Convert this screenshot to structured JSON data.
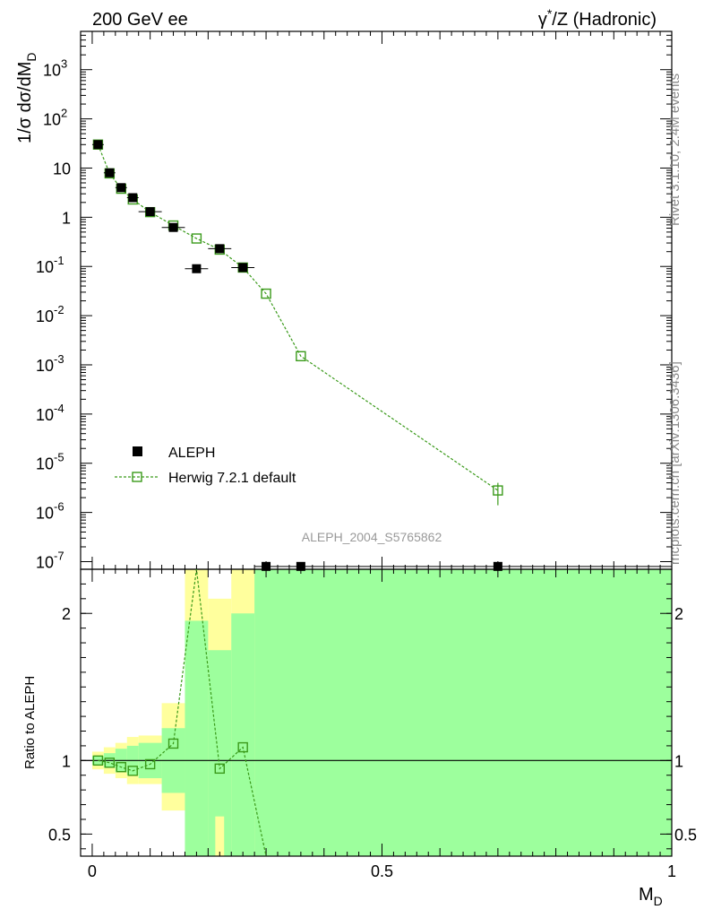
{
  "header": {
    "left": "200 GeV ee",
    "right_prefix": "γ",
    "right_sup": "*",
    "right_suffix": "/Z (Hadronic)"
  },
  "side": {
    "rivet": "Rivet 3.1.10,  2.4M events",
    "mcplots": "mcplots.cern.ch [arXiv:1306.3436]"
  },
  "watermark": "ALEPH_2004_S5765862",
  "ylabel_main": {
    "prefix": "1/σ  dσ/dM",
    "sub": "D"
  },
  "ylabel_ratio": "Ratio to ALEPH",
  "xlabel": {
    "prefix": "M",
    "sub": "D"
  },
  "legend": [
    {
      "label": "ALEPH",
      "style": "data"
    },
    {
      "label": "Herwig 7.2.1 default",
      "style": "mc"
    }
  ],
  "colors": {
    "data": "#000000",
    "mc": "#3a9a1a",
    "band_inner": "#9dff9d",
    "band_outer": "#ffff9d",
    "axis": "#000000"
  },
  "chart_data": [
    {
      "type": "scatter",
      "panel": "main",
      "yscale": "log",
      "xlim": [
        -0.02,
        1.0
      ],
      "ylim": [
        7e-08,
        6000
      ],
      "yticks": [
        {
          "value": 1e-07,
          "base": "10",
          "exp": "-7"
        },
        {
          "value": 1e-06,
          "base": "10",
          "exp": "-6"
        },
        {
          "value": 1e-05,
          "base": "10",
          "exp": "-5"
        },
        {
          "value": 0.0001,
          "base": "10",
          "exp": "-4"
        },
        {
          "value": 0.001,
          "base": "10",
          "exp": "-3"
        },
        {
          "value": 0.01,
          "base": "10",
          "exp": "-2"
        },
        {
          "value": 0.1,
          "base": "10",
          "exp": "-1"
        },
        {
          "value": 1,
          "base": "1",
          "exp": ""
        },
        {
          "value": 10,
          "base": "10",
          "exp": ""
        },
        {
          "value": 100,
          "base": "10",
          "exp": "2"
        },
        {
          "value": 1000,
          "base": "10",
          "exp": "3"
        }
      ],
      "series": [
        {
          "name": "ALEPH",
          "x": [
            0.01,
            0.03,
            0.05,
            0.07,
            0.1,
            0.14,
            0.18,
            0.22,
            0.26,
            0.3,
            0.36,
            0.7
          ],
          "y": [
            30,
            8.0,
            4.0,
            2.5,
            1.3,
            0.62,
            0.09,
            0.23,
            0.095,
            8e-08,
            8e-08,
            8e-08
          ],
          "xerr": [
            0.01,
            0.01,
            0.01,
            0.01,
            0.02,
            0.02,
            0.02,
            0.02,
            0.02,
            0.02,
            0.04,
            0.3
          ]
        },
        {
          "name": "Herwig 7.2.1 default",
          "x": [
            0.01,
            0.03,
            0.05,
            0.07,
            0.1,
            0.14,
            0.18,
            0.22,
            0.26,
            0.3,
            0.36,
            0.7
          ],
          "y": [
            30,
            7.8,
            3.8,
            2.3,
            1.27,
            0.68,
            0.37,
            0.22,
            0.095,
            0.028,
            0.0015,
            2.8e-06
          ],
          "yerr_low": [
            0,
            0,
            0,
            0,
            0,
            0,
            0,
            0,
            0,
            0,
            0,
            1.4e-06
          ],
          "yerr_high": [
            0,
            0,
            0,
            0,
            0,
            0,
            0,
            0,
            0,
            0,
            0,
            1.2e-06
          ]
        }
      ]
    },
    {
      "type": "line",
      "panel": "ratio",
      "xlim": [
        -0.02,
        1.0
      ],
      "ylim": [
        0.35,
        2.3
      ],
      "xticks": [
        "0",
        "0.5",
        "1"
      ],
      "yticks": [
        "0.5",
        "1",
        "2"
      ],
      "reference": 1.0,
      "band_bins": [
        0,
        0.02,
        0.04,
        0.06,
        0.08,
        0.12,
        0.16,
        0.2,
        0.24,
        0.28,
        0.32,
        1.0
      ],
      "band_inner": [
        [
          0.97,
          1.03
        ],
        [
          0.95,
          1.05
        ],
        [
          0.92,
          1.08
        ],
        [
          0.9,
          1.1
        ],
        [
          0.88,
          1.12
        ],
        [
          0.78,
          1.22
        ],
        [
          0.35,
          1.95
        ],
        [
          0.35,
          1.75
        ],
        [
          0.35,
          2.0
        ],
        [
          0.35,
          2.3
        ],
        [
          0.35,
          2.3
        ]
      ],
      "band_outer": [
        [
          0.94,
          1.06
        ],
        [
          0.91,
          1.09
        ],
        [
          0.88,
          1.12
        ],
        [
          0.84,
          1.16
        ],
        [
          0.84,
          1.17
        ],
        [
          0.66,
          1.39
        ],
        [
          0.35,
          2.3
        ],
        [
          0.35,
          2.1
        ],
        [
          0.35,
          2.3
        ],
        [
          0.35,
          2.3
        ],
        [
          0.35,
          2.3
        ]
      ],
      "series": [
        {
          "name": "Herwig 7.2.1 default",
          "x": [
            0.01,
            0.03,
            0.05,
            0.07,
            0.1,
            0.14,
            0.18,
            0.22,
            0.26,
            0.3
          ],
          "y": [
            1.0,
            0.985,
            0.955,
            0.93,
            0.975,
            1.115,
            4.0,
            0.945,
            1.09,
            0.0
          ]
        }
      ]
    }
  ]
}
